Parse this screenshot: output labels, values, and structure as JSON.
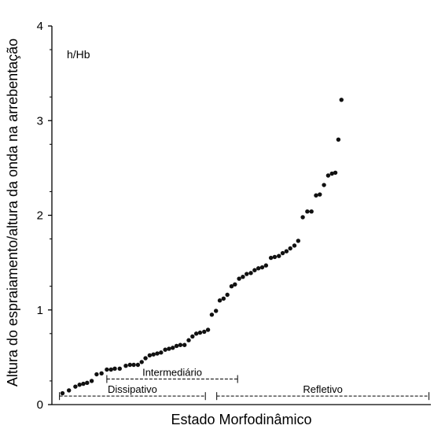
{
  "chart_data": {
    "type": "scatter",
    "title": "",
    "panel_label": "h/Hb",
    "xlabel": "Estado Morfodinâmico",
    "ylabel": "Altura do espraiamento/altura da onda na arrebentação",
    "xlim": [
      0,
      100
    ],
    "ylim": [
      0,
      4
    ],
    "yticks": [
      0,
      1,
      2,
      3,
      4
    ],
    "yticklabels": [
      "0",
      "1",
      "2",
      "3",
      "4"
    ],
    "grid": false,
    "point_color": "#111111",
    "points": [
      [
        2.8,
        0.12
      ],
      [
        4.5,
        0.15
      ],
      [
        6.2,
        0.19
      ],
      [
        7.3,
        0.21
      ],
      [
        8.3,
        0.22
      ],
      [
        9.3,
        0.23
      ],
      [
        10.5,
        0.25
      ],
      [
        11.8,
        0.32
      ],
      [
        13.1,
        0.33
      ],
      [
        14.5,
        0.37
      ],
      [
        15.6,
        0.37
      ],
      [
        16.6,
        0.38
      ],
      [
        17.9,
        0.38
      ],
      [
        19.5,
        0.41
      ],
      [
        20.6,
        0.42
      ],
      [
        21.6,
        0.42
      ],
      [
        22.7,
        0.42
      ],
      [
        23.7,
        0.45
      ],
      [
        24.7,
        0.49
      ],
      [
        25.8,
        0.52
      ],
      [
        26.8,
        0.53
      ],
      [
        27.8,
        0.54
      ],
      [
        28.8,
        0.55
      ],
      [
        29.9,
        0.58
      ],
      [
        30.9,
        0.59
      ],
      [
        31.9,
        0.6
      ],
      [
        32.9,
        0.62
      ],
      [
        33.9,
        0.63
      ],
      [
        35.0,
        0.63
      ],
      [
        36.1,
        0.68
      ],
      [
        37.1,
        0.72
      ],
      [
        38.1,
        0.75
      ],
      [
        39.1,
        0.76
      ],
      [
        40.2,
        0.77
      ],
      [
        41.2,
        0.79
      ],
      [
        42.2,
        0.95
      ],
      [
        43.3,
        0.99
      ],
      [
        44.3,
        1.1
      ],
      [
        45.3,
        1.12
      ],
      [
        46.3,
        1.16
      ],
      [
        47.4,
        1.25
      ],
      [
        48.3,
        1.27
      ],
      [
        49.4,
        1.33
      ],
      [
        50.4,
        1.35
      ],
      [
        51.4,
        1.38
      ],
      [
        52.5,
        1.39
      ],
      [
        53.5,
        1.42
      ],
      [
        54.5,
        1.44
      ],
      [
        55.5,
        1.45
      ],
      [
        56.5,
        1.47
      ],
      [
        57.8,
        1.55
      ],
      [
        58.8,
        1.56
      ],
      [
        59.9,
        1.57
      ],
      [
        60.9,
        1.6
      ],
      [
        61.9,
        1.62
      ],
      [
        62.9,
        1.65
      ],
      [
        64.0,
        1.68
      ],
      [
        65.0,
        1.73
      ],
      [
        66.2,
        1.98
      ],
      [
        67.4,
        2.04
      ],
      [
        68.5,
        2.04
      ],
      [
        69.7,
        2.21
      ],
      [
        70.7,
        2.22
      ],
      [
        71.8,
        2.32
      ],
      [
        72.9,
        2.42
      ],
      [
        73.9,
        2.44
      ],
      [
        74.8,
        2.45
      ],
      [
        75.6,
        2.8
      ],
      [
        76.4,
        3.22
      ]
    ],
    "annotations": [
      {
        "label": "Intermediário",
        "x_range": [
          14.5,
          49
        ],
        "y": 0.27
      },
      {
        "label": "Dissipativo",
        "x_range": [
          2,
          40.5
        ],
        "y": 0.09
      },
      {
        "label": "Refletivo",
        "x_range": [
          43.5,
          99.5
        ],
        "y": 0.09
      }
    ]
  }
}
